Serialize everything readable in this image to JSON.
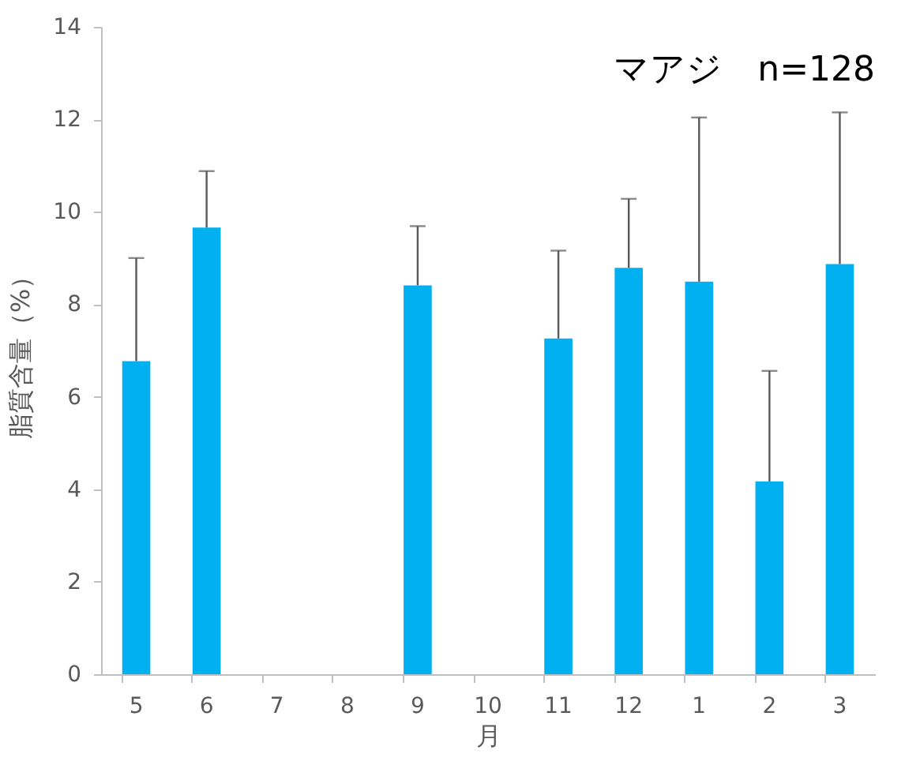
{
  "chart_data": {
    "type": "bar",
    "title": "マアジ　n=128",
    "xlabel": "月",
    "ylabel": "脂質含量（%）",
    "categories": [
      "5",
      "6",
      "7",
      "8",
      "9",
      "10",
      "11",
      "12",
      "1",
      "2",
      "3"
    ],
    "values": [
      6.77,
      9.66,
      null,
      null,
      8.41,
      null,
      7.26,
      8.79,
      8.49,
      4.17,
      8.87
    ],
    "errors": [
      [
        6.77,
        9.0
      ],
      [
        9.66,
        10.88
      ],
      null,
      null,
      [
        8.41,
        9.69
      ],
      null,
      [
        7.26,
        9.16
      ],
      [
        8.79,
        10.28
      ],
      [
        8.49,
        12.04
      ],
      [
        4.17,
        6.56
      ],
      [
        8.87,
        12.15
      ]
    ],
    "color": "#00b0f0",
    "ylim": [
      0,
      14
    ],
    "yticks": [
      0,
      2,
      4,
      6,
      8,
      10,
      12,
      14
    ],
    "grid": false
  }
}
